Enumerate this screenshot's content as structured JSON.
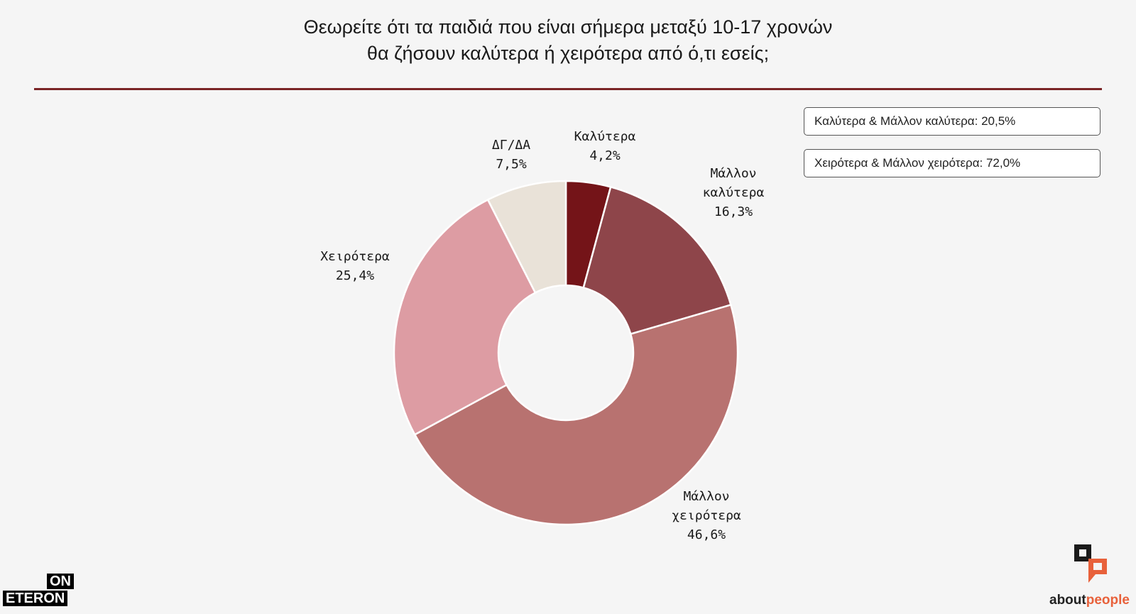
{
  "title": {
    "line1": "Θεωρείτε ότι τα παιδιά που είναι σήμερα μεταξύ 10-17 χρονών",
    "line2": "θα ζήσουν καλύτερα ή χειρότερα από ό,τι εσείς;"
  },
  "summary": {
    "better": "Καλύτερα & Μάλλον καλύτερα: 20,5%",
    "worse": "Χειρότερα & Μάλλον χειρότερα: 72,0%"
  },
  "chart_data": {
    "type": "pie",
    "donut": true,
    "categories": [
      "Καλύτερα",
      "Μάλλον καλύτερα",
      "Μάλλον χειρότερα",
      "Χειρότερα",
      "ΔΓ/ΔΑ"
    ],
    "values": [
      4.2,
      16.3,
      46.6,
      25.4,
      7.5
    ],
    "value_labels": [
      "4,2%",
      "16,3%",
      "46,6%",
      "25,4%",
      "7,5%"
    ],
    "colors": [
      "#741418",
      "#8e454a",
      "#b87270",
      "#dd9ca3",
      "#e9e2d8"
    ]
  },
  "slice_labels": [
    {
      "lines": [
        "Καλύτερα",
        "4,2%"
      ]
    },
    {
      "lines": [
        "Μάλλον",
        "καλύτερα",
        "16,3%"
      ]
    },
    {
      "lines": [
        "Μάλλον",
        "χειρότερα",
        "46,6%"
      ]
    },
    {
      "lines": [
        "Χειρότερα",
        "25,4%"
      ]
    },
    {
      "lines": [
        "ΔΓ/ΔΑ",
        "7,5%"
      ]
    }
  ],
  "logos": {
    "left_top": "ON",
    "left_bottom": "ETERON",
    "right_word_1": "about",
    "right_word_2": "people",
    "accent": "#e8613b"
  }
}
